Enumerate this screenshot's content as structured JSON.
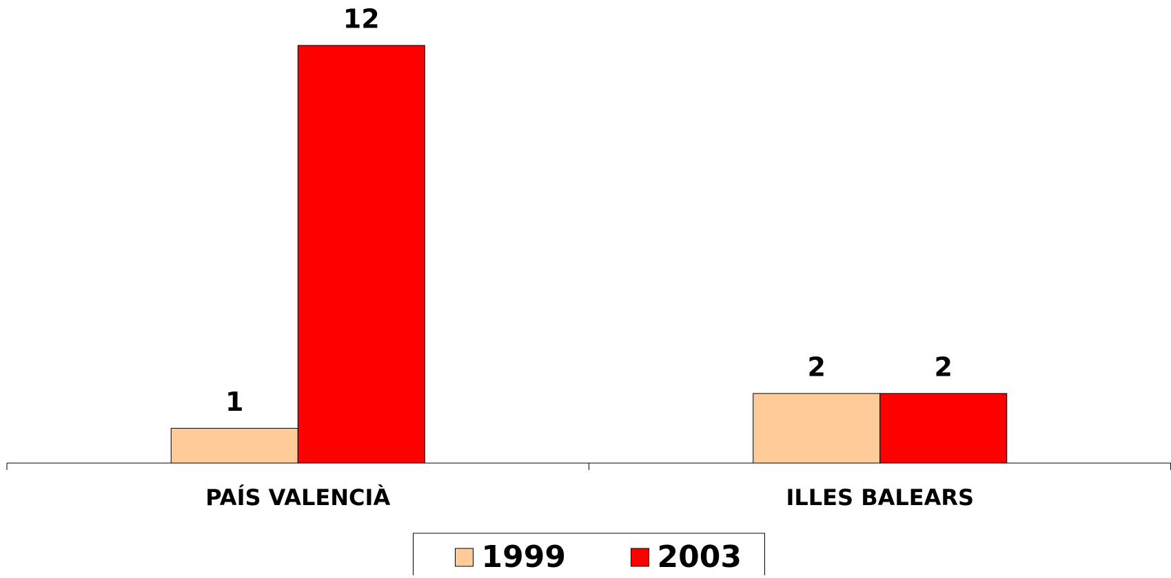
{
  "chart_data": {
    "type": "bar",
    "categories": [
      "PAÍS VALENCIÀ",
      "ILLES BALEARS"
    ],
    "series": [
      {
        "name": "1999",
        "color": "#ffcc99",
        "values": [
          1,
          2
        ]
      },
      {
        "name": "2003",
        "color": "#ff0000",
        "values": [
          12,
          2
        ]
      }
    ],
    "ylim": [
      0,
      12
    ],
    "legend": "bottom"
  }
}
